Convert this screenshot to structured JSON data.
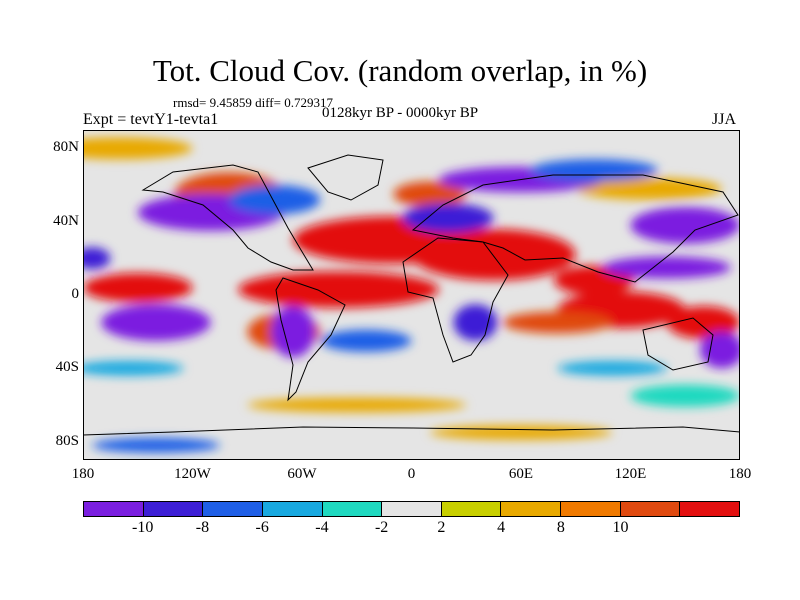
{
  "title": "Tot. Cloud Cov. (random overlap, in %)",
  "stats": "rmsd= 9.45859 diff= 0.729317",
  "experiment": "Expt = tevtY1-tevta1",
  "period": "0128kyr BP - 0000kyr BP",
  "season": "JJA",
  "map": {
    "projection": "cylindrical equidistant",
    "lon_range": [
      -180,
      180
    ],
    "lat_range": [
      -90,
      90
    ],
    "background_color": "#e5e5e5",
    "lat_ticks": [
      {
        "lat": 80,
        "label": "80N"
      },
      {
        "lat": 40,
        "label": "40N"
      },
      {
        "lat": 0,
        "label": "0"
      },
      {
        "lat": -40,
        "label": "40S"
      },
      {
        "lat": -80,
        "label": "80S"
      }
    ],
    "lon_ticks": [
      {
        "lon": -180,
        "label": "180"
      },
      {
        "lon": -120,
        "label": "120W"
      },
      {
        "lon": -60,
        "label": "60W"
      },
      {
        "lon": 0,
        "label": "0"
      },
      {
        "lon": 60,
        "label": "60E"
      },
      {
        "lon": 120,
        "label": "120E"
      },
      {
        "lon": 180,
        "label": "180"
      }
    ]
  },
  "colorbar": {
    "colors": [
      "#7b1fe0",
      "#3d1fd6",
      "#1f5fe6",
      "#19a9e0",
      "#1fd9c0",
      "#e5e5e5",
      "#c8cf00",
      "#e8a900",
      "#f07a00",
      "#e04a10",
      "#e31010"
    ],
    "labels": [
      {
        "boundary": 1,
        "text": "-10"
      },
      {
        "boundary": 2,
        "text": "-8"
      },
      {
        "boundary": 3,
        "text": "-6"
      },
      {
        "boundary": 4,
        "text": "-4"
      },
      {
        "boundary": 5,
        "text": "-2"
      },
      {
        "boundary": 6,
        "text": "2"
      },
      {
        "boundary": 7,
        "text": "4"
      },
      {
        "boundary": 8,
        "text": "8"
      },
      {
        "boundary": 9,
        "text": "10"
      }
    ]
  },
  "anomaly_regions": [
    {
      "level": 10,
      "lon": -10,
      "lat": 30,
      "rlon": 55,
      "rlat": 13
    },
    {
      "level": 10,
      "lon": 45,
      "lat": 22,
      "rlon": 45,
      "rlat": 14
    },
    {
      "level": 10,
      "lon": -40,
      "lat": 3,
      "rlon": 55,
      "rlat": 10
    },
    {
      "level": 10,
      "lon": -150,
      "lat": 4,
      "rlon": 30,
      "rlat": 8
    },
    {
      "level": 10,
      "lon": 115,
      "lat": -8,
      "rlon": 35,
      "rlat": 10
    },
    {
      "level": 10,
      "lon": 160,
      "lat": -15,
      "rlon": 20,
      "rlat": 9
    },
    {
      "level": 10,
      "lon": 100,
      "lat": 8,
      "rlon": 22,
      "rlat": 8
    },
    {
      "level": 8,
      "lon": -100,
      "lat": 55,
      "rlon": 30,
      "rlat": 12
    },
    {
      "level": 8,
      "lon": 10,
      "lat": 55,
      "rlon": 20,
      "rlat": 7
    },
    {
      "level": 8,
      "lon": 80,
      "lat": -15,
      "rlon": 30,
      "rlat": 6
    },
    {
      "level": 8,
      "lon": -70,
      "lat": -20,
      "rlon": 20,
      "rlat": 10
    },
    {
      "level": 4,
      "lon": -160,
      "lat": 80,
      "rlon": 40,
      "rlat": 6
    },
    {
      "level": 4,
      "lon": 130,
      "lat": 58,
      "rlon": 40,
      "rlat": 6
    },
    {
      "level": 4,
      "lon": -30,
      "lat": -60,
      "rlon": 60,
      "rlat": 4
    },
    {
      "level": 4,
      "lon": 60,
      "lat": -75,
      "rlon": 50,
      "rlat": 4
    },
    {
      "level": -10,
      "lon": -110,
      "lat": 45,
      "rlon": 40,
      "rlat": 10
    },
    {
      "level": -10,
      "lon": -140,
      "lat": -15,
      "rlon": 30,
      "rlat": 10
    },
    {
      "level": -10,
      "lon": -65,
      "lat": -20,
      "rlon": 12,
      "rlat": 14
    },
    {
      "level": -10,
      "lon": 60,
      "lat": 63,
      "rlon": 45,
      "rlat": 7
    },
    {
      "level": -10,
      "lon": 150,
      "lat": 38,
      "rlon": 30,
      "rlat": 10
    },
    {
      "level": -10,
      "lon": 140,
      "lat": 15,
      "rlon": 35,
      "rlat": 6
    },
    {
      "level": -10,
      "lon": 170,
      "lat": -30,
      "rlon": 12,
      "rlat": 10
    },
    {
      "level": -8,
      "lon": 20,
      "lat": 42,
      "rlon": 25,
      "rlat": 8
    },
    {
      "level": -8,
      "lon": 35,
      "lat": -15,
      "rlon": 12,
      "rlat": 10
    },
    {
      "level": -8,
      "lon": -175,
      "lat": 20,
      "rlon": 10,
      "rlat": 6
    },
    {
      "level": -6,
      "lon": -75,
      "lat": 52,
      "rlon": 25,
      "rlat": 8
    },
    {
      "level": -6,
      "lon": 100,
      "lat": 68,
      "rlon": 35,
      "rlat": 6
    },
    {
      "level": -6,
      "lon": -25,
      "lat": -25,
      "rlon": 25,
      "rlat": 6
    },
    {
      "level": -4,
      "lon": -155,
      "lat": -40,
      "rlon": 30,
      "rlat": 4
    },
    {
      "level": -4,
      "lon": 110,
      "lat": -40,
      "rlon": 30,
      "rlat": 4
    },
    {
      "level": -6,
      "lon": -140,
      "lat": -82,
      "rlon": 35,
      "rlat": 4
    },
    {
      "level": -2,
      "lon": 150,
      "lat": -55,
      "rlon": 30,
      "rlat": 6
    }
  ]
}
